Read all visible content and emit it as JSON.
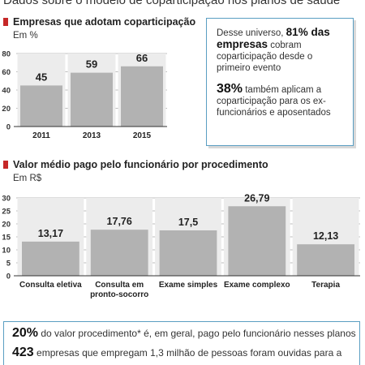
{
  "header": {
    "text": "Dados sobre o modelo de coparticipação nos planos de saúde"
  },
  "section1": {
    "title": "Empresas que adotam coparticipação",
    "unit": "Em %"
  },
  "section2": {
    "title": "Valor médio pago pelo funcionário por procedimento",
    "unit": "Em R$"
  },
  "info": {
    "p1_pre": "Desse universo,",
    "p1_value": "81% das empresas",
    "p1_post": "cobram coparticipação desde o primeiro evento",
    "p2_value": "38%",
    "p2_post": "também aplicam a coparticipação para os ex-funcionários e aposentados"
  },
  "bottom": {
    "line1_value": "20%",
    "line1_text": "do valor procedimento* é, em geral, pago pelo funcionário nesses planos",
    "line2_value": "423",
    "line2_text": "empresas que empregam 1,3 milhão de pessoas foram ouvidas para a"
  },
  "chart_data": [
    {
      "type": "bar",
      "title": "Empresas que adotam coparticipação",
      "ylabel": "Em %",
      "categories": [
        "2011",
        "2013",
        "2015"
      ],
      "values": [
        45,
        59,
        66
      ],
      "value_labels": [
        "45",
        "59",
        "66"
      ],
      "ylim": [
        0,
        80
      ],
      "yticks": [
        0,
        20,
        40,
        60,
        80
      ],
      "grid": true,
      "bar_color": "#b2b2b2"
    },
    {
      "type": "bar",
      "title": "Valor médio pago pelo funcionário por procedimento",
      "ylabel": "Em R$",
      "categories": [
        "Consulta eletiva",
        "Consulta em pronto-socorro",
        "Exame simples",
        "Exame complexo",
        "Terapia"
      ],
      "category_lines": [
        [
          "Consulta eletiva"
        ],
        [
          "Consulta em",
          "pronto-socorro"
        ],
        [
          "Exame simples"
        ],
        [
          "Exame complexo"
        ],
        [
          "Terapia"
        ]
      ],
      "values": [
        13.17,
        17.76,
        17.5,
        26.79,
        12.13
      ],
      "value_labels": [
        "13,17",
        "17,76",
        "17,5",
        "26,79",
        "12,13"
      ],
      "ylim": [
        0,
        30
      ],
      "yticks": [
        0,
        5,
        10,
        15,
        20,
        25,
        30
      ],
      "grid": true,
      "bar_color": "#b2b2b2"
    }
  ]
}
